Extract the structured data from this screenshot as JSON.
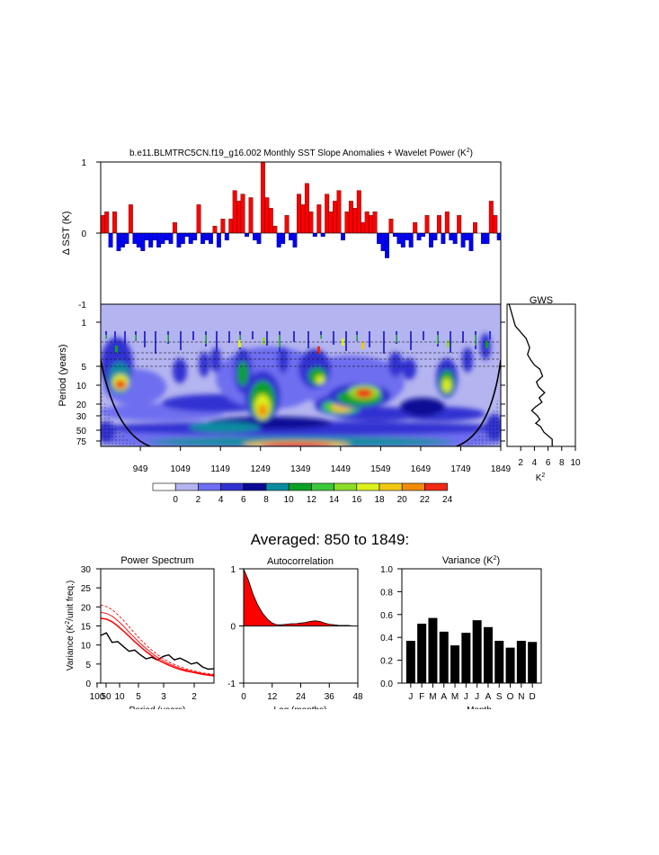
{
  "timeseries": {
    "title": "b.e11.BLMTRC5CN.f19_g16.002 Monthly SST Slope Anomalies + Wavelet Power (K",
    "title_sup": "2",
    "title_end": ")",
    "ylabel": "Δ SST (K)",
    "yticks": [
      "1",
      "0",
      "-1"
    ]
  },
  "wavelet": {
    "ylabel": "Period (years)",
    "yticks": [
      "1",
      "5",
      "10",
      "20",
      "30",
      "50",
      "75"
    ],
    "xticks": [
      "949",
      "1049",
      "1149",
      "1249",
      "1349",
      "1449",
      "1549",
      "1649",
      "1749",
      "1849"
    ]
  },
  "gws": {
    "title": "GWS",
    "xticks": [
      "2",
      "4",
      "6",
      "8",
      "10"
    ],
    "xlabel": "K",
    "xlabel_sup": "2"
  },
  "colorbar": {
    "labels": [
      "0",
      "2",
      "4",
      "6",
      "8",
      "10",
      "12",
      "14",
      "16",
      "18",
      "20",
      "22",
      "24"
    ],
    "colors": [
      "#ffffff",
      "#b4b4f0",
      "#6e6ef0",
      "#3232d2",
      "#0a0a96",
      "#0a8ca0",
      "#0aa028",
      "#3cc83c",
      "#8cdc28",
      "#dcf01e",
      "#f0c814",
      "#f08c0a",
      "#f02814"
    ]
  },
  "averaged_title": "Averaged: 850 to 1849:",
  "chart_data": [
    {
      "type": "bar",
      "title": "b.e11.BLMTRC5CN.f19_g16.002 Monthly SST Slope Anomalies + Wavelet Power (K²)",
      "ylabel": "Δ SST (K)",
      "ylim": [
        -1,
        1
      ],
      "xlim": [
        850,
        1849
      ],
      "colors": {
        "positive": "#ff0000",
        "negative": "#0000ff"
      },
      "x": [
        855,
        865,
        875,
        885,
        895,
        905,
        915,
        925,
        935,
        945,
        955,
        965,
        975,
        985,
        995,
        1005,
        1015,
        1025,
        1035,
        1045,
        1055,
        1065,
        1075,
        1085,
        1095,
        1105,
        1115,
        1125,
        1135,
        1145,
        1155,
        1165,
        1175,
        1185,
        1195,
        1205,
        1215,
        1225,
        1235,
        1245,
        1255,
        1265,
        1275,
        1285,
        1295,
        1305,
        1315,
        1325,
        1335,
        1345,
        1355,
        1365,
        1375,
        1385,
        1395,
        1405,
        1415,
        1425,
        1435,
        1445,
        1455,
        1465,
        1475,
        1485,
        1495,
        1505,
        1515,
        1525,
        1535,
        1545,
        1555,
        1565,
        1575,
        1585,
        1595,
        1605,
        1615,
        1625,
        1635,
        1645,
        1655,
        1665,
        1675,
        1685,
        1695,
        1705,
        1715,
        1725,
        1735,
        1745,
        1755,
        1765,
        1775,
        1785,
        1805,
        1815,
        1825,
        1835,
        1845
      ],
      "values": [
        0.25,
        0.3,
        -0.2,
        0.3,
        -0.25,
        -0.2,
        -0.15,
        0.4,
        -0.15,
        -0.2,
        -0.25,
        -0.1,
        -0.2,
        -0.1,
        -0.2,
        -0.15,
        -0.1,
        -0.15,
        0.15,
        -0.2,
        -0.15,
        -0.05,
        -0.15,
        -0.1,
        0.4,
        -0.15,
        -0.1,
        -0.15,
        0.1,
        -0.2,
        0.2,
        -0.1,
        0.2,
        0.6,
        0.45,
        0.55,
        -0.05,
        0.5,
        -0.1,
        -0.15,
        1.0,
        0.5,
        0.35,
        0.1,
        -0.2,
        -0.15,
        0.25,
        -0.1,
        -0.2,
        0.55,
        0.4,
        0.7,
        0.3,
        -0.05,
        0.4,
        -0.05,
        0.55,
        0.3,
        0.45,
        0.6,
        -0.1,
        0.3,
        0.45,
        0.35,
        0.6,
        0.15,
        0.3,
        0.25,
        0.3,
        -0.15,
        -0.25,
        -0.35,
        0.2,
        -0.05,
        -0.15,
        -0.2,
        -0.1,
        -0.2,
        0.15,
        -0.1,
        -0.05,
        0.25,
        -0.2,
        -0.1,
        0.25,
        -0.15,
        0.3,
        -0.1,
        -0.15,
        0.25,
        -0.2,
        -0.1,
        -0.25,
        0.15,
        -0.15,
        -0.15,
        0.45,
        0.25,
        -0.1
      ]
    },
    {
      "type": "line",
      "title": "GWS",
      "xlabel": "K²",
      "xlim": [
        0,
        10
      ],
      "ylim": [
        1,
        75
      ],
      "x": [
        0.3,
        1.2,
        2.8,
        3.3,
        3.0,
        3.5,
        4.0,
        4.8,
        5.2,
        4.3,
        4.6,
        5.5,
        4.7,
        5.1,
        4.1,
        3.6,
        4.4,
        4.8,
        4.2,
        4.9,
        5.4,
        6.6
      ],
      "y": [
        1,
        2,
        3,
        4,
        5,
        6,
        7,
        8,
        10,
        12,
        14,
        17,
        20,
        23,
        27,
        30,
        35,
        40,
        45,
        50,
        60,
        75
      ]
    },
    {
      "type": "line",
      "title": "Power Spectrum",
      "xlabel": "Period (years)",
      "ylabel": "Variance (K²/unit freq.)",
      "ylim": [
        0,
        30
      ],
      "xticks": [
        "100",
        "50",
        "10",
        "5",
        "3",
        "2"
      ],
      "yticks": [
        "0",
        "5",
        "10",
        "15",
        "20",
        "25",
        "30"
      ],
      "series": [
        {
          "color": "#000000",
          "x": [
            0,
            0.05,
            0.1,
            0.15,
            0.2,
            0.25,
            0.3,
            0.35,
            0.4,
            0.45,
            0.5,
            0.55,
            0.6,
            0.65,
            0.7,
            0.75,
            0.8,
            0.85,
            0.9,
            0.95,
            1.0
          ],
          "values": [
            12.5,
            12.8,
            11.2,
            10.6,
            9.5,
            8.8,
            8.2,
            7.6,
            6.6,
            6.3,
            6.5,
            6.9,
            7.1,
            6.6,
            6.2,
            5.8,
            5.4,
            4.9,
            4.5,
            3.8,
            3.3
          ]
        },
        {
          "color": "#ff0000",
          "x": [
            0,
            0.05,
            0.1,
            0.15,
            0.2,
            0.25,
            0.3,
            0.35,
            0.4,
            0.45,
            0.5,
            0.55,
            0.6,
            0.65,
            0.7,
            0.75,
            0.8,
            0.85,
            0.9,
            0.95,
            1.0
          ],
          "values": [
            17,
            16.8,
            16.1,
            15,
            13.7,
            12.3,
            10.9,
            9.6,
            8.3,
            7.2,
            6.2,
            5.4,
            4.7,
            4.1,
            3.6,
            3.2,
            2.9,
            2.6,
            2.3,
            2.1,
            1.9
          ]
        },
        {
          "color": "#ff0000",
          "x": [
            0,
            0.05,
            0.1,
            0.15,
            0.2,
            0.25,
            0.3,
            0.35,
            0.4,
            0.45,
            0.5,
            0.55,
            0.6,
            0.65,
            0.7,
            0.75,
            0.8,
            0.85,
            0.9,
            0.95,
            1.0
          ],
          "values": [
            18.6,
            18.3,
            17.6,
            16.4,
            15,
            13.4,
            11.9,
            10.4,
            9.1,
            7.9,
            6.8,
            5.9,
            5.1,
            4.5,
            3.9,
            3.5,
            3.1,
            2.8,
            2.5,
            2.3,
            2.1
          ]
        },
        {
          "color": "#ff0000",
          "x": [
            0,
            0.05,
            0.1,
            0.15,
            0.2,
            0.25,
            0.3,
            0.35,
            0.4,
            0.45,
            0.5,
            0.55,
            0.6,
            0.65,
            0.7,
            0.75,
            0.8,
            0.85,
            0.9,
            0.95,
            1.0
          ],
          "values": [
            20.5,
            20.1,
            19.3,
            18,
            16.5,
            14.8,
            13.1,
            11.5,
            10,
            8.7,
            7.5,
            6.5,
            5.6,
            4.9,
            4.3,
            3.8,
            3.4,
            3.0,
            2.7,
            2.5,
            2.3
          ]
        }
      ]
    },
    {
      "type": "area",
      "title": "Autocorrelation",
      "xlabel": "Lag (months)",
      "xlim": [
        0,
        48
      ],
      "ylim": [
        -1,
        1
      ],
      "xticks": [
        "0",
        "12",
        "24",
        "36",
        "48"
      ],
      "yticks": [
        "1",
        "0",
        "-1"
      ],
      "x": [
        0,
        2,
        4,
        6,
        8,
        10,
        12,
        14,
        16,
        18,
        20,
        22,
        24,
        26,
        28,
        30,
        32,
        34,
        36,
        38,
        40,
        42,
        44,
        46,
        48
      ],
      "values": [
        1.0,
        0.8,
        0.55,
        0.36,
        0.22,
        0.12,
        0.05,
        0.02,
        0.02,
        0.03,
        0.04,
        0.04,
        0.05,
        0.06,
        0.08,
        0.09,
        0.08,
        0.05,
        0.03,
        0.02,
        0.01,
        0.01,
        0.01,
        0.0,
        0.0
      ]
    },
    {
      "type": "bar",
      "title": "Variance (K²)",
      "xlabel": "Month",
      "ylim": [
        0,
        1.0
      ],
      "yticks": [
        "0.0",
        "0.2",
        "0.4",
        "0.6",
        "0.8",
        "1.0"
      ],
      "categories": [
        "J",
        "F",
        "M",
        "A",
        "M",
        "J",
        "J",
        "A",
        "S",
        "O",
        "N",
        "D"
      ],
      "values": [
        0.37,
        0.52,
        0.57,
        0.45,
        0.33,
        0.44,
        0.55,
        0.49,
        0.37,
        0.31,
        0.37,
        0.36
      ]
    }
  ],
  "spectrum_title": "Power Spectrum",
  "spectrum_xlabel": "Period (years)",
  "spectrum_ylabel": "Variance (K",
  "spectrum_ylabel_sup": "2",
  "spectrum_ylabel_end": "/unit freq.)",
  "autocorr_title": "Autocorrelation",
  "autocorr_xlabel": "Lag (months)",
  "variance_title": "Variance (K",
  "variance_title_sup": "2",
  "variance_title_end": ")",
  "variance_xlabel": "Month"
}
